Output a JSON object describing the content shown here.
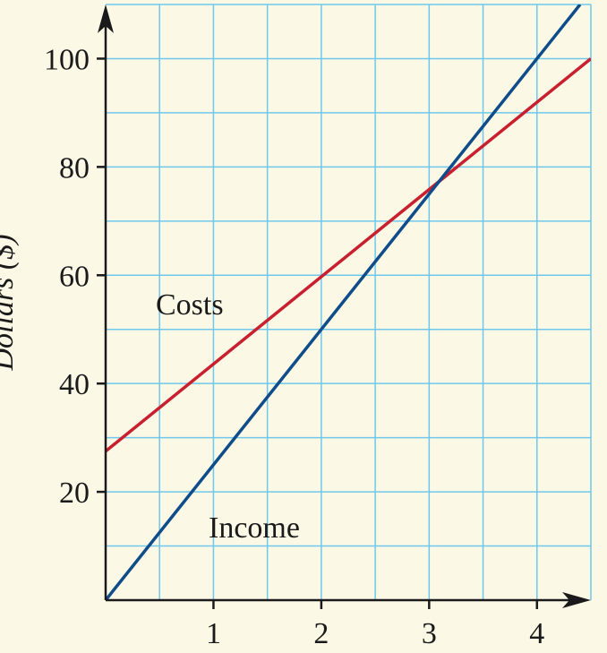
{
  "chart_data": {
    "type": "line",
    "title": "",
    "xlabel": "",
    "ylabel": "Dollars ($)",
    "xlim": [
      0,
      4.5
    ],
    "ylim": [
      0,
      110
    ],
    "x_ticks": [
      1,
      2,
      3,
      4
    ],
    "y_ticks": [
      20,
      40,
      60,
      80,
      100
    ],
    "x_grid_step": 0.5,
    "y_grid_step": 10,
    "grid": true,
    "series": [
      {
        "name": "Costs",
        "x": [
          0,
          4.5
        ],
        "y": [
          27.5,
          100
        ],
        "color": "#c8202f"
      },
      {
        "name": "Income",
        "x": [
          0,
          4.4
        ],
        "y": [
          0,
          110
        ],
        "color": "#0f4c8a"
      }
    ],
    "background_color": "#fbf8e6",
    "grid_color": "#6fc8ec"
  }
}
